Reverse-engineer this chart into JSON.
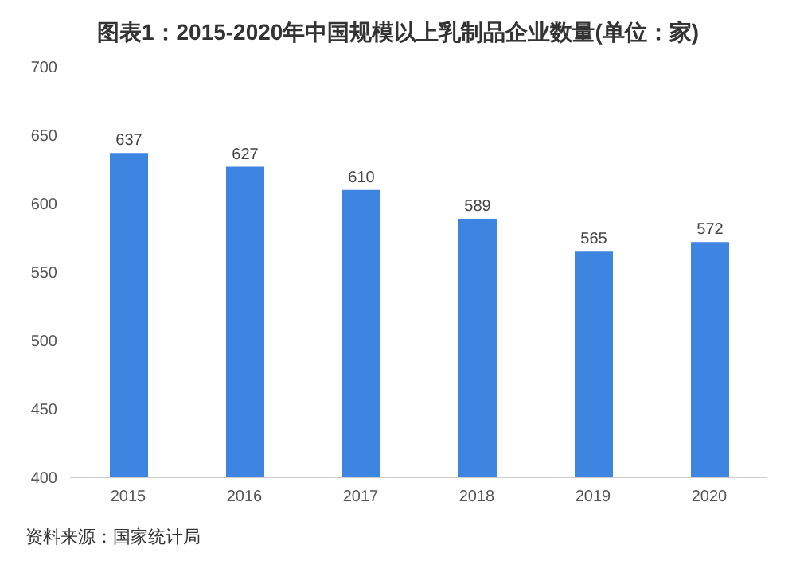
{
  "chart_data": {
    "type": "bar",
    "title": "图表1：2015-2020年中国规模以上乳制品企业数量(单位：家)",
    "categories": [
      "2015",
      "2016",
      "2017",
      "2018",
      "2019",
      "2020"
    ],
    "values": [
      637,
      627,
      610,
      589,
      565,
      572
    ],
    "color": "#3d85e0",
    "ylim": [
      400,
      700
    ],
    "yticks": [
      400,
      450,
      500,
      550,
      600,
      650,
      700
    ],
    "data_labels": true,
    "annotations": [
      "资料来源：国家统计局"
    ]
  }
}
